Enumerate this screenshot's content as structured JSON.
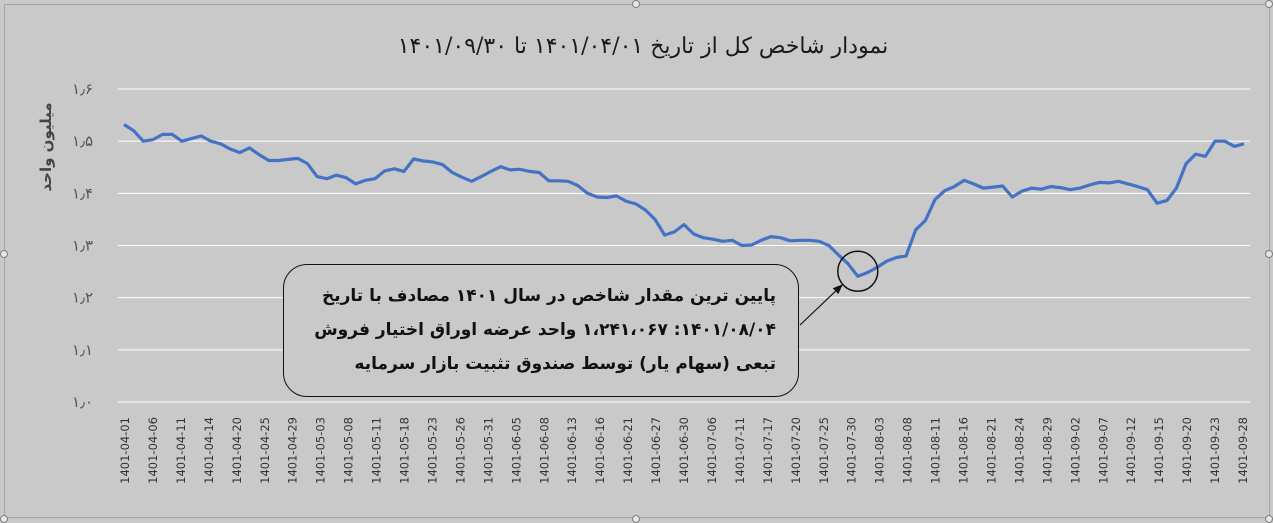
{
  "colors": {
    "background": "#c9c9c9",
    "line": "#4472c4",
    "grid": "#ffffff",
    "text": "#1a1a1a"
  },
  "chart_data": {
    "type": "line",
    "title": "نمودار شاخص کل از تاریخ ۱۴۰۱/۰۴/۰۱ تا ۱۴۰۱/۰۹/۳۰",
    "xlabel": "",
    "ylabel": "میلیون واحد",
    "ylim": [
      1.0,
      1.6
    ],
    "yticks": [
      "۱٫۰",
      "۱٫۱",
      "۱٫۲",
      "۱٫۳",
      "۱٫۴",
      "۱٫۵",
      "۱٫۶"
    ],
    "grid": true,
    "x_tick_labels": [
      "1401-04-01",
      "1401-04-06",
      "1401-04-11",
      "1401-04-14",
      "1401-04-20",
      "1401-04-25",
      "1401-04-29",
      "1401-05-03",
      "1401-05-08",
      "1401-05-11",
      "1401-05-18",
      "1401-05-23",
      "1401-05-26",
      "1401-05-31",
      "1401-06-05",
      "1401-06-08",
      "1401-06-13",
      "1401-06-16",
      "1401-06-21",
      "1401-06-27",
      "1401-06-30",
      "1401-07-06",
      "1401-07-11",
      "1401-07-17",
      "1401-07-20",
      "1401-07-25",
      "1401-07-30",
      "1401-08-03",
      "1401-08-08",
      "1401-08-11",
      "1401-08-16",
      "1401-08-21",
      "1401-08-24",
      "1401-08-29",
      "1401-09-02",
      "1401-09-07",
      "1401-09-12",
      "1401-09-15",
      "1401-09-20",
      "1401-09-23",
      "1401-09-28"
    ],
    "series": [
      {
        "values": [
          1.532,
          1.52,
          1.5,
          1.503,
          1.513,
          1.513,
          1.5,
          1.505,
          1.51,
          1.5,
          1.495,
          1.485,
          1.478,
          1.487,
          1.474,
          1.463,
          1.463,
          1.465,
          1.467,
          1.457,
          1.432,
          1.428,
          1.435,
          1.43,
          1.418,
          1.425,
          1.428,
          1.443,
          1.447,
          1.442,
          1.466,
          1.462,
          1.46,
          1.455,
          1.44,
          1.431,
          1.423,
          1.432,
          1.442,
          1.451,
          1.445,
          1.446,
          1.442,
          1.44,
          1.424,
          1.424,
          1.423,
          1.415,
          1.4,
          1.393,
          1.392,
          1.395,
          1.385,
          1.38,
          1.368,
          1.35,
          1.32,
          1.326,
          1.34,
          1.322,
          1.315,
          1.312,
          1.308,
          1.31,
          1.3,
          1.301,
          1.31,
          1.317,
          1.315,
          1.309,
          1.31,
          1.31,
          1.308,
          1.3,
          1.282,
          1.265,
          1.241,
          1.248,
          1.258,
          1.27,
          1.277,
          1.28,
          1.33,
          1.348,
          1.388,
          1.405,
          1.413,
          1.425,
          1.418,
          1.41,
          1.412,
          1.414,
          1.393,
          1.404,
          1.41,
          1.408,
          1.413,
          1.411,
          1.407,
          1.41,
          1.416,
          1.421,
          1.42,
          1.423,
          1.418,
          1.413,
          1.407,
          1.381,
          1.386,
          1.41,
          1.457,
          1.475,
          1.471,
          1.5,
          1.5,
          1.49,
          1.495
        ]
      }
    ]
  },
  "callout": {
    "line1": "پایین ترین مقدار شاخص  در سال ۱۴۰۱ مصادف با تاریخ",
    "line2": "۱۴۰۱/۰۸/۰۴: ۱،۲۴۱،۰۶۷ واحد عرضه اوراق اختیار فروش",
    "line3": "تبعی (سهام یار) توسط صندوق تثبیت بازار سرمایه"
  }
}
